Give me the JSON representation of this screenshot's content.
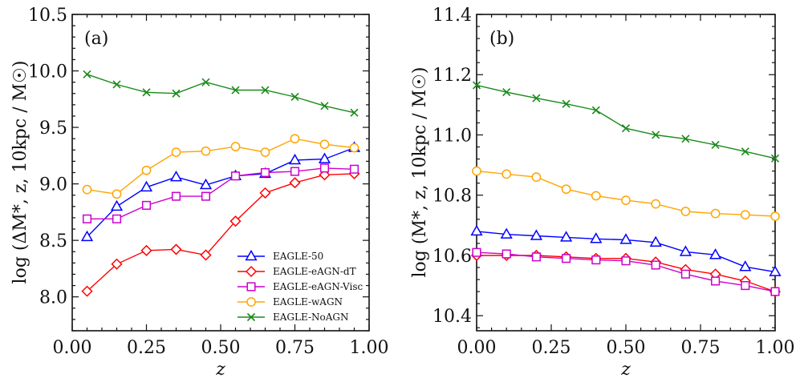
{
  "series_styles": [
    {
      "name": "EAGLE-50",
      "color": "#0000ff",
      "marker": "triangle"
    },
    {
      "name": "EAGLE-eAGN-dT",
      "color": "#ff0000",
      "marker": "diamond"
    },
    {
      "name": "EAGLE-eAGN-Visc",
      "color": "#cc00cc",
      "marker": "square"
    },
    {
      "name": "EAGLE-wAGN",
      "color": "#ffa500",
      "marker": "circle"
    },
    {
      "name": "EAGLE-NoAGN",
      "color": "#1a8a1a",
      "marker": "x"
    }
  ],
  "chart_data": [
    {
      "type": "line",
      "panel_label": "(a)",
      "xlabel": "z",
      "ylabel": "log (ΔM*, z, 10kpc / M☉)",
      "xlim": [
        0.0,
        1.0
      ],
      "ylim": [
        7.7,
        10.5
      ],
      "xticks": [
        0.0,
        0.25,
        0.5,
        0.75,
        1.0
      ],
      "xtick_labels": [
        "0.00",
        "0.25",
        "0.50",
        "0.75",
        "1.00"
      ],
      "yticks": [
        8.0,
        8.5,
        9.0,
        9.5,
        10.0,
        10.5
      ],
      "ytick_labels": [
        "8.0",
        "8.5",
        "9.0",
        "9.5",
        "10.0",
        "10.5"
      ],
      "legend": {
        "placement": "bottom-right",
        "entries": [
          "EAGLE-50",
          "EAGLE-eAGN-dT",
          "EAGLE-eAGN-Visc",
          "EAGLE-wAGN",
          "EAGLE-NoAGN"
        ]
      },
      "x": [
        0.05,
        0.15,
        0.25,
        0.35,
        0.45,
        0.55,
        0.65,
        0.75,
        0.85,
        0.95
      ],
      "series": [
        {
          "name": "EAGLE-50",
          "values": [
            8.53,
            8.8,
            8.97,
            9.06,
            8.99,
            9.07,
            9.09,
            9.21,
            9.22,
            9.32
          ]
        },
        {
          "name": "EAGLE-eAGN-dT",
          "values": [
            8.05,
            8.29,
            8.41,
            8.42,
            8.37,
            8.67,
            8.92,
            9.01,
            9.08,
            9.09
          ]
        },
        {
          "name": "EAGLE-eAGN-Visc",
          "values": [
            8.69,
            8.69,
            8.81,
            8.89,
            8.89,
            9.07,
            9.1,
            9.11,
            9.14,
            9.13
          ]
        },
        {
          "name": "EAGLE-wAGN",
          "values": [
            8.95,
            8.91,
            9.12,
            9.28,
            9.29,
            9.33,
            9.28,
            9.4,
            9.35,
            9.32
          ]
        },
        {
          "name": "EAGLE-NoAGN",
          "values": [
            9.97,
            9.88,
            9.81,
            9.8,
            9.9,
            9.83,
            9.83,
            9.77,
            9.69,
            9.63
          ]
        }
      ]
    },
    {
      "type": "line",
      "panel_label": "(b)",
      "xlabel": "z",
      "ylabel": "log (M*, z, 10kpc / M☉)",
      "xlim": [
        0.0,
        1.0
      ],
      "ylim": [
        10.35,
        11.4
      ],
      "xticks": [
        0.0,
        0.25,
        0.5,
        0.75,
        1.0
      ],
      "xtick_labels": [
        "0.00",
        "0.25",
        "0.50",
        "0.75",
        "1.00"
      ],
      "yticks": [
        10.4,
        10.6,
        10.8,
        11.0,
        11.2,
        11.4
      ],
      "ytick_labels": [
        "10.4",
        "10.6",
        "10.8",
        "11.0",
        "11.2",
        "11.4"
      ],
      "x": [
        0.0,
        0.1,
        0.2,
        0.3,
        0.4,
        0.5,
        0.6,
        0.7,
        0.8,
        0.9,
        1.0
      ],
      "series": [
        {
          "name": "EAGLE-50",
          "values": [
            10.68,
            10.67,
            10.665,
            10.66,
            10.655,
            10.652,
            10.643,
            10.612,
            10.602,
            10.562,
            10.545
          ]
        },
        {
          "name": "EAGLE-eAGN-dT",
          "values": [
            10.6,
            10.6,
            10.6,
            10.595,
            10.59,
            10.59,
            10.578,
            10.553,
            10.538,
            10.515,
            10.48
          ]
        },
        {
          "name": "EAGLE-eAGN-Visc",
          "values": [
            10.61,
            10.605,
            10.595,
            10.59,
            10.585,
            10.582,
            10.568,
            10.538,
            10.515,
            10.5,
            10.48
          ]
        },
        {
          "name": "EAGLE-wAGN",
          "values": [
            10.88,
            10.87,
            10.86,
            10.82,
            10.798,
            10.783,
            10.771,
            10.746,
            10.739,
            10.735,
            10.73
          ]
        },
        {
          "name": "EAGLE-NoAGN",
          "values": [
            11.165,
            11.142,
            11.122,
            11.103,
            11.082,
            11.022,
            11.0,
            10.987,
            10.967,
            10.945,
            10.922
          ]
        }
      ]
    }
  ]
}
